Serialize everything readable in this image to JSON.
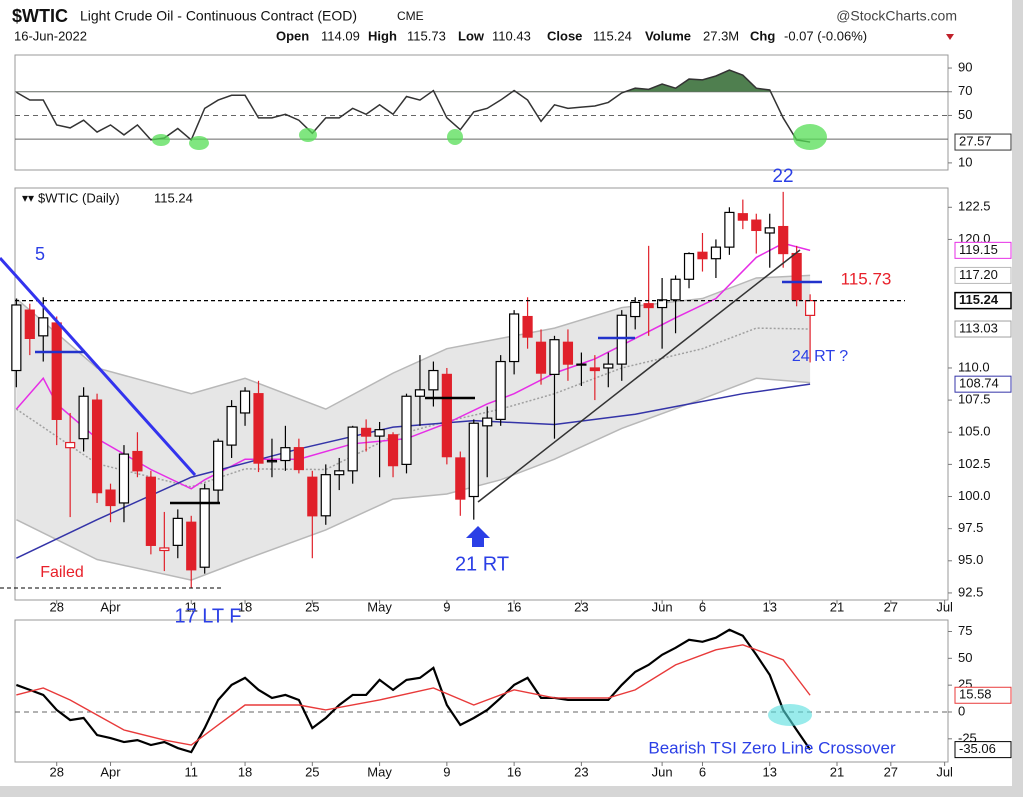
{
  "header": {
    "symbol": "$WTIC",
    "name": "Light Crude Oil - Continuous Contract (EOD)",
    "exchange": "CME",
    "source": "@StockCharts.com",
    "date": "16-Jun-2022",
    "fields": [
      {
        "label": "Open",
        "value": "114.09"
      },
      {
        "label": "High",
        "value": "115.73"
      },
      {
        "label": "Low",
        "value": "110.43"
      },
      {
        "label": "Close",
        "value": "115.24"
      },
      {
        "label": "Volume",
        "value": "27.3M"
      },
      {
        "label": "Chg",
        "value": "-0.07 (-0.06%)"
      }
    ]
  },
  "chart_data": [
    {
      "type": "line",
      "x": [
        0,
        1,
        2,
        3,
        4,
        5,
        6,
        7,
        8,
        9,
        10,
        11,
        12,
        13,
        14,
        15,
        16,
        17,
        18,
        19,
        20,
        21,
        22,
        23,
        24,
        25,
        26,
        27,
        28,
        29,
        30,
        31,
        32,
        33,
        34,
        35,
        36,
        37,
        38,
        39,
        40,
        41,
        42,
        43,
        44,
        45,
        46,
        47,
        48,
        49,
        50,
        51,
        52,
        53,
        54,
        55,
        56,
        57,
        58,
        59
      ],
      "xlim": [
        -0.1,
        69.25
      ],
      "ylim": [
        4,
        101
      ],
      "yticks": [
        10,
        50,
        70,
        90
      ],
      "ref_lines": [
        30,
        70
      ],
      "dashed_ref_lines": [
        50
      ],
      "series": [
        {
          "color": "#333333",
          "fill_above": 70,
          "fill_color": "#4f7f4f",
          "last_box": true,
          "values": [
            69.6,
            63,
            63,
            42,
            39.5,
            46,
            36,
            42,
            33.6,
            42,
            29.4,
            31,
            39,
            29.4,
            56,
            63,
            67,
            67,
            48,
            48,
            51,
            46,
            35,
            48,
            48,
            56,
            51,
            59,
            51,
            66,
            63,
            71,
            48,
            38,
            53,
            56,
            63,
            71,
            63,
            45,
            59,
            56,
            57,
            58,
            61,
            69,
            73,
            72,
            76.5,
            73,
            80.7,
            80,
            83.3,
            88.3,
            84,
            73,
            71.5,
            47.9,
            29.4,
            27.57
          ]
        }
      ]
    },
    {
      "type": "candlestick",
      "title": "$WTIC (Daily)",
      "up_color": "#000000",
      "down_color": "#e0202a",
      "last_box": true,
      "x": [
        0,
        1,
        2,
        3,
        4,
        5,
        6,
        7,
        8,
        9,
        10,
        11,
        12,
        13,
        14,
        15,
        16,
        17,
        18,
        19,
        20,
        21,
        22,
        23,
        24,
        25,
        26,
        27,
        28,
        29,
        30,
        31,
        32,
        33,
        34,
        35,
        36,
        37,
        38,
        39,
        40,
        41,
        42,
        43,
        44,
        45,
        46,
        47,
        48,
        49,
        50,
        51,
        52,
        53,
        54,
        55,
        56,
        57,
        58,
        59
      ],
      "open": [
        109.8,
        114.5,
        112.5,
        113.5,
        103.8,
        104.5,
        107.5,
        100.5,
        99.5,
        103.5,
        101.5,
        95.8,
        96.2,
        98,
        94.5,
        100.5,
        104,
        106.5,
        108,
        102.7,
        102.8,
        103.8,
        101.5,
        98.5,
        101.7,
        102,
        105.3,
        104.7,
        104.8,
        102.5,
        107.8,
        108.3,
        109.5,
        103,
        100,
        105.5,
        106,
        110.5,
        114,
        112,
        109.5,
        112,
        110.3,
        110,
        110,
        110.3,
        114,
        115,
        114.7,
        115.3,
        116.9,
        119,
        118.5,
        119.4,
        122,
        121.5,
        120.5,
        121,
        118.9,
        114.09
      ],
      "high": [
        115.4,
        115,
        115.5,
        114,
        106.5,
        108.5,
        108,
        101,
        104,
        105,
        102,
        98.8,
        99,
        98.5,
        101,
        104.5,
        107.5,
        108.5,
        109,
        104.5,
        105.5,
        104.5,
        102,
        102.5,
        103,
        105.5,
        106,
        105.8,
        105,
        108,
        111,
        110.5,
        110,
        103.5,
        106,
        107,
        111,
        114.5,
        115.5,
        113,
        112.5,
        113,
        111.2,
        111,
        111.2,
        114.5,
        115.5,
        119.5,
        117,
        117.2,
        119,
        120.5,
        120,
        122.5,
        123.1,
        122,
        122,
        123.7,
        119.5,
        115.73
      ],
      "low": [
        108.5,
        111,
        110.5,
        104,
        98.4,
        103.5,
        99.5,
        98,
        98,
        101.5,
        95.5,
        94.2,
        95.2,
        92.9,
        94,
        99.5,
        103,
        105.5,
        101.9,
        101.5,
        102,
        101.8,
        95.2,
        97.8,
        100.5,
        101,
        103.5,
        101.5,
        101.5,
        101.8,
        105.5,
        107,
        102.5,
        98.5,
        98.2,
        101.5,
        105.5,
        109.5,
        111.5,
        108.7,
        104.5,
        109,
        108.6,
        107.5,
        108.5,
        109,
        113,
        112.5,
        111.5,
        112.7,
        116.2,
        117.5,
        117,
        118.8,
        120.8,
        118.9,
        117.8,
        117.8,
        114.8,
        110.43
      ],
      "close": [
        114.9,
        112.3,
        113.9,
        106,
        104.2,
        107.8,
        100.3,
        99.3,
        103.3,
        102,
        96.2,
        96,
        98.3,
        94.3,
        100.6,
        104.3,
        107,
        108.2,
        102.6,
        102.8,
        103.8,
        102.1,
        98.5,
        101.7,
        102,
        105.4,
        104.7,
        105.2,
        102.4,
        107.8,
        108.3,
        109.8,
        103.1,
        99.8,
        105.7,
        106.1,
        110.5,
        114.2,
        112.4,
        109.6,
        112.2,
        110.3,
        110.3,
        109.8,
        110.3,
        114.1,
        115.1,
        114.7,
        115.3,
        116.9,
        118.9,
        118.5,
        119.4,
        122.1,
        121.5,
        120.7,
        120.9,
        118.9,
        115.31,
        115.24
      ],
      "xlim": [
        -0.1,
        69.25
      ],
      "ylim": [
        91.95,
        124.0
      ],
      "yticks": [
        92.5,
        {
          "value": 95,
          "label": "95.0"
        },
        97.5,
        {
          "value": 100,
          "label": "100.0"
        },
        102.5,
        {
          "value": 105,
          "label": "105.0"
        },
        107.5,
        {
          "value": 110,
          "label": "110.0"
        },
        {
          "value": 120,
          "label": "120.0"
        },
        122.5
      ],
      "xticks": [
        {
          "value": 3,
          "label": "28"
        },
        {
          "value": 7,
          "label": "Apr"
        },
        {
          "value": 13,
          "label": "11"
        },
        {
          "value": 17,
          "label": "18"
        },
        {
          "value": 22,
          "label": "25"
        },
        {
          "value": 27,
          "label": "May"
        },
        {
          "value": 32,
          "label": "9"
        },
        {
          "value": 37,
          "label": "16"
        },
        {
          "value": 42,
          "label": "23"
        },
        {
          "value": 48,
          "label": "Jun"
        },
        {
          "value": 51,
          "label": "6"
        },
        {
          "value": 56,
          "label": "13"
        },
        {
          "value": 61,
          "label": "21"
        },
        {
          "value": 65,
          "label": "27"
        },
        {
          "value": 69,
          "label": "Jul"
        }
      ],
      "series": [
        {
          "x": [
            0,
            6,
            13,
            17,
            23,
            28,
            32,
            36,
            40,
            45,
            51,
            55,
            59
          ],
          "values": [
            115.4,
            110.0,
            108.0,
            109.2,
            106.8,
            109.6,
            111.5,
            112.3,
            113.1,
            114.7,
            115.4,
            117.0,
            117.2
          ],
          "value_labels": [
            null,
            null,
            null,
            null,
            null,
            null,
            null,
            null,
            null,
            null,
            null,
            null,
            "117.20"
          ],
          "color": "#b8b8b8",
          "fill_to_next": "#e6e6e6",
          "last_box": true
        },
        {
          "x": [
            0,
            6,
            13,
            17,
            23,
            28,
            32,
            36,
            40,
            45,
            51,
            55,
            59
          ],
          "values": [
            98.2,
            95.1,
            93.5,
            95.1,
            97.4,
            99.8,
            100.2,
            101.3,
            102.9,
            105.3,
            107.6,
            109.2,
            108.86
          ],
          "color": "#b8b8b8"
        },
        {
          "x": [
            0,
            6,
            13,
            17,
            23,
            28,
            32,
            36,
            40,
            45,
            51,
            55,
            59
          ],
          "values": [
            106.8,
            102.55,
            100.75,
            102.15,
            102.1,
            104.7,
            105.85,
            106.8,
            108.0,
            110.0,
            111.5,
            113.1,
            113.03
          ],
          "color": "#a0a0a0",
          "dash": "2 2",
          "last_box": true
        },
        {
          "x": [
            0,
            2,
            3,
            6,
            10,
            13,
            14,
            17,
            21,
            25,
            29,
            32,
            35,
            37,
            40,
            43,
            46,
            49,
            52,
            55,
            57,
            59
          ],
          "values": [
            106.8,
            109.2,
            107.2,
            104.5,
            102.1,
            100.6,
            101.3,
            102.9,
            102.9,
            104.1,
            104.5,
            105.7,
            107.2,
            108.0,
            109.6,
            110.7,
            112.3,
            113.9,
            115.4,
            118.6,
            119.7,
            119.15
          ],
          "color": "#e62ee6",
          "last_box": true
        },
        {
          "x": [
            0,
            6,
            13,
            21,
            28,
            34,
            40,
            46,
            50,
            54,
            59
          ],
          "values": [
            95.2,
            98.2,
            101.5,
            103.7,
            105.4,
            105.9,
            105.6,
            106.4,
            107.2,
            108.0,
            108.74
          ],
          "color": "#3434a8",
          "last_box": true
        }
      ],
      "annotations": [
        "5",
        "22",
        "21 RT",
        "17 LT F",
        "Failed",
        "115.73",
        "24 RT ?"
      ]
    },
    {
      "type": "line",
      "x": [
        0,
        1,
        2,
        3,
        4,
        5,
        6,
        7,
        8,
        9,
        10,
        11,
        12,
        13,
        14,
        15,
        16,
        17,
        18,
        19,
        20,
        21,
        22,
        23,
        24,
        25,
        26,
        27,
        28,
        29,
        30,
        31,
        32,
        33,
        34,
        35,
        36,
        37,
        38,
        39,
        40,
        41,
        42,
        43,
        44,
        45,
        46,
        47,
        48,
        49,
        50,
        51,
        52,
        53,
        54,
        55,
        56,
        57,
        58,
        59
      ],
      "xlim": [
        -0.1,
        69.25
      ],
      "ylim": [
        -46.6,
        85.7
      ],
      "yticks": [
        -25,
        0,
        25,
        50,
        75
      ],
      "dashed_ref_lines": [
        0
      ],
      "xticks": [
        {
          "value": 3,
          "label": "28"
        },
        {
          "value": 7,
          "label": "Apr"
        },
        {
          "value": 13,
          "label": "11"
        },
        {
          "value": 17,
          "label": "18"
        },
        {
          "value": 22,
          "label": "25"
        },
        {
          "value": 27,
          "label": "May"
        },
        {
          "value": 32,
          "label": "9"
        },
        {
          "value": 37,
          "label": "16"
        },
        {
          "value": 42,
          "label": "23"
        },
        {
          "value": 48,
          "label": "Jun"
        },
        {
          "value": 51,
          "label": "6"
        },
        {
          "value": 56,
          "label": "13"
        },
        {
          "value": 61,
          "label": "21"
        },
        {
          "value": 65,
          "label": "27"
        },
        {
          "value": 69,
          "label": "Jul"
        }
      ],
      "series": [
        {
          "color": "#000000",
          "width": 2.2,
          "last_box": true,
          "values": [
            25.2,
            20.6,
            15.9,
            1.9,
            -7.5,
            -5.6,
            -21.5,
            -24.3,
            -28,
            -26.2,
            -30.8,
            -28,
            -33.6,
            -37.4,
            -15,
            11.2,
            25.2,
            31.8,
            20.6,
            13.1,
            15.9,
            11.2,
            -15,
            -5.6,
            6.5,
            15.9,
            15.9,
            29.9,
            20.6,
            29.9,
            31.8,
            41.1,
            6.5,
            -12.1,
            -5.6,
            1.9,
            13.1,
            25.2,
            31.8,
            13.1,
            13.1,
            11.2,
            11.2,
            11.2,
            11.2,
            25.2,
            37.4,
            43.9,
            53.3,
            59.8,
            67.3,
            65.4,
            69.2,
            76.6,
            71,
            53.3,
            34.6,
            1.9,
            -16.8,
            -35.06
          ]
        },
        {
          "color": "#e83a3a",
          "width": 1.4,
          "last_box": true,
          "x": [
            0,
            2,
            4,
            6,
            8,
            11,
            13,
            15,
            17,
            21,
            23,
            27,
            31,
            34,
            37,
            40,
            44,
            46,
            49,
            52,
            54,
            57,
            59
          ],
          "values": [
            15.9,
            22.4,
            11.2,
            -2.8,
            -16.8,
            -26.2,
            -30.8,
            -12.1,
            6.5,
            6.5,
            1.9,
            11.2,
            22.4,
            6.5,
            20.6,
            13.1,
            13.1,
            20.6,
            43.9,
            57.9,
            62.6,
            48.6,
            15.58
          ]
        }
      ],
      "annotations": [
        "Bearish TSI Zero Line Crossover"
      ]
    }
  ]
}
